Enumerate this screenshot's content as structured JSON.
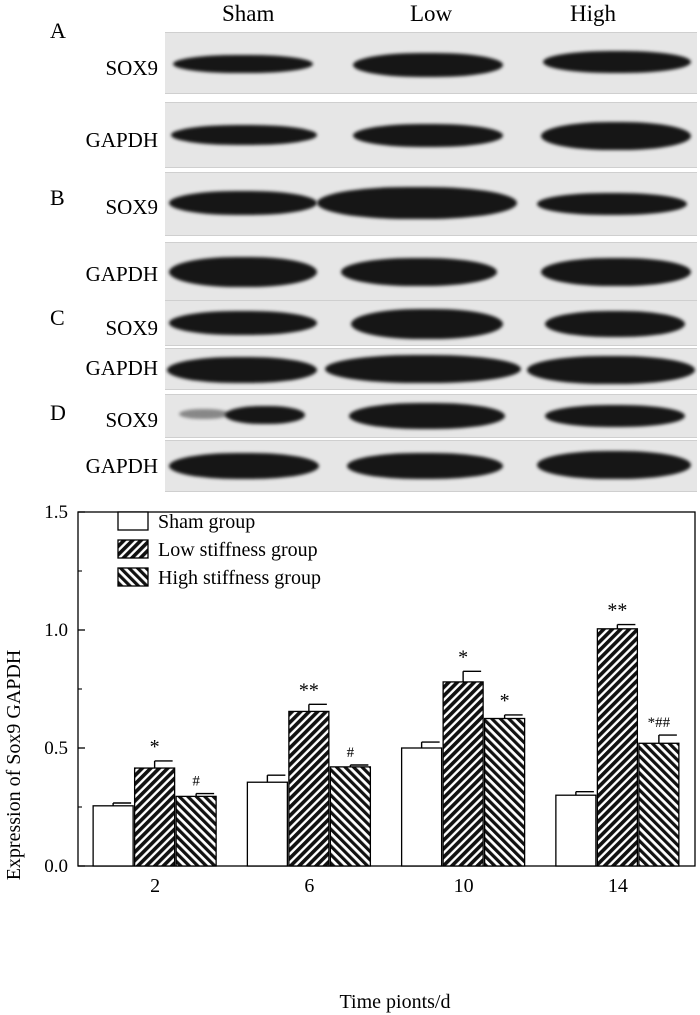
{
  "blot": {
    "lanes": [
      "Sham",
      "Low",
      "High"
    ],
    "panels": [
      {
        "letter": "A",
        "rows": [
          "SOX9",
          "GAPDH"
        ]
      },
      {
        "letter": "B",
        "rows": [
          "SOX9",
          "GAPDH"
        ]
      },
      {
        "letter": "C",
        "rows": [
          "SOX9",
          "GAPDH"
        ]
      },
      {
        "letter": "D",
        "rows": [
          "SOX9",
          "GAPDH"
        ]
      }
    ]
  },
  "chart_data": {
    "type": "bar",
    "title": "",
    "xlabel": "Time pionts/d",
    "ylabel": "Expression of Sox9 GAPDH",
    "ylim": [
      0,
      1.5
    ],
    "yticks": [
      "0.0",
      "0.5",
      "1.0",
      "1.5"
    ],
    "categories": [
      "2",
      "6",
      "10",
      "14"
    ],
    "legend_position": "top-left",
    "grid": false,
    "series": [
      {
        "name": "Sham group",
        "pattern": "open",
        "values": [
          0.255,
          0.355,
          0.5,
          0.3
        ],
        "errors": [
          0.012,
          0.03,
          0.025,
          0.015
        ],
        "annotations": [
          "",
          "",
          "",
          ""
        ]
      },
      {
        "name": "Low stiffness group",
        "pattern": "forward-hatch",
        "values": [
          0.415,
          0.655,
          0.78,
          1.005
        ],
        "errors": [
          0.03,
          0.03,
          0.045,
          0.018
        ],
        "annotations": [
          "*",
          "**",
          "*",
          "**"
        ]
      },
      {
        "name": "High stiffness group",
        "pattern": "back-hatch",
        "values": [
          0.295,
          0.42,
          0.625,
          0.52
        ],
        "errors": [
          0.012,
          0.008,
          0.015,
          0.035
        ],
        "annotations": [
          "#",
          "#",
          "*",
          "*##"
        ]
      }
    ]
  }
}
